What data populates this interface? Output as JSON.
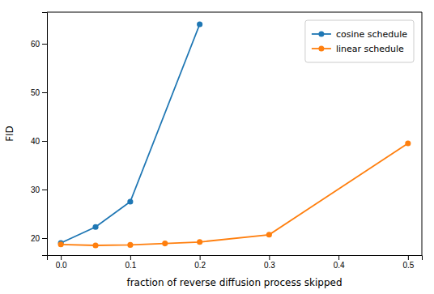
{
  "chart_data": {
    "type": "line",
    "xlabel": "fraction of reverse diffusion process skipped",
    "ylabel": "FID",
    "series": [
      {
        "name": "cosine schedule",
        "color": "#1f77b4",
        "marker": "o",
        "x": [
          0.0,
          0.05,
          0.1,
          0.2
        ],
        "values": [
          19.0,
          22.3,
          27.5,
          64.0
        ]
      },
      {
        "name": "linear schedule",
        "color": "#ff7f0e",
        "marker": "o",
        "x": [
          0.0,
          0.05,
          0.1,
          0.15,
          0.2,
          0.3,
          0.5
        ],
        "values": [
          18.7,
          18.5,
          18.6,
          18.9,
          19.2,
          20.7,
          39.5
        ]
      }
    ],
    "xlim": [
      -0.02,
      0.52
    ],
    "ylim": [
      16.5,
      66.5
    ],
    "xticks": [
      {
        "value": 0.0,
        "label": "0.0"
      },
      0.1,
      0.2,
      0.3,
      0.4,
      0.5
    ],
    "yticks": [
      20,
      30,
      40,
      50,
      60
    ],
    "grid": false,
    "legend": "upper right"
  }
}
